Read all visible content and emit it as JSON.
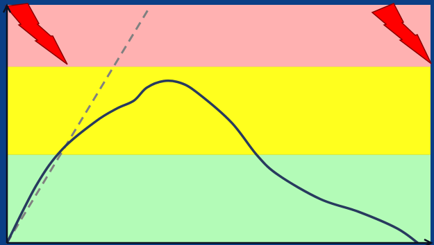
{
  "diagram": {
    "frame_color": "#0a3f86",
    "axis_color": "#0b1020",
    "zones": [
      {
        "name": "danger",
        "color": "#ffb1b1",
        "y_from": 0.74,
        "y_to": 1.0
      },
      {
        "name": "warning",
        "color": "#ffff1e",
        "y_from": 0.37,
        "y_to": 0.74
      },
      {
        "name": "safe",
        "color": "#b3fbb7",
        "y_from": 0.0,
        "y_to": 0.37
      }
    ],
    "curve": {
      "color": "#283a5e",
      "points": [
        [
          0.0,
          0.0
        ],
        [
          0.07,
          0.244
        ],
        [
          0.13,
          0.392
        ],
        [
          0.21,
          0.511
        ],
        [
          0.26,
          0.565
        ],
        [
          0.3,
          0.598
        ],
        [
          0.33,
          0.652
        ],
        [
          0.37,
          0.68
        ],
        [
          0.41,
          0.672
        ],
        [
          0.45,
          0.63
        ],
        [
          0.53,
          0.506
        ],
        [
          0.59,
          0.369
        ],
        [
          0.64,
          0.286
        ],
        [
          0.74,
          0.184
        ],
        [
          0.83,
          0.131
        ],
        [
          0.92,
          0.062
        ],
        [
          0.97,
          0.0
        ]
      ]
    },
    "tangent": {
      "color": "#808080",
      "points": [
        [
          0.0,
          0.0
        ],
        [
          0.335,
          0.985
        ]
      ]
    },
    "hazard_icons": [
      {
        "name": "lightning-bolt-icon-left",
        "color": "#ff0000"
      },
      {
        "name": "lightning-bolt-icon-right",
        "color": "#ff0000"
      }
    ]
  }
}
